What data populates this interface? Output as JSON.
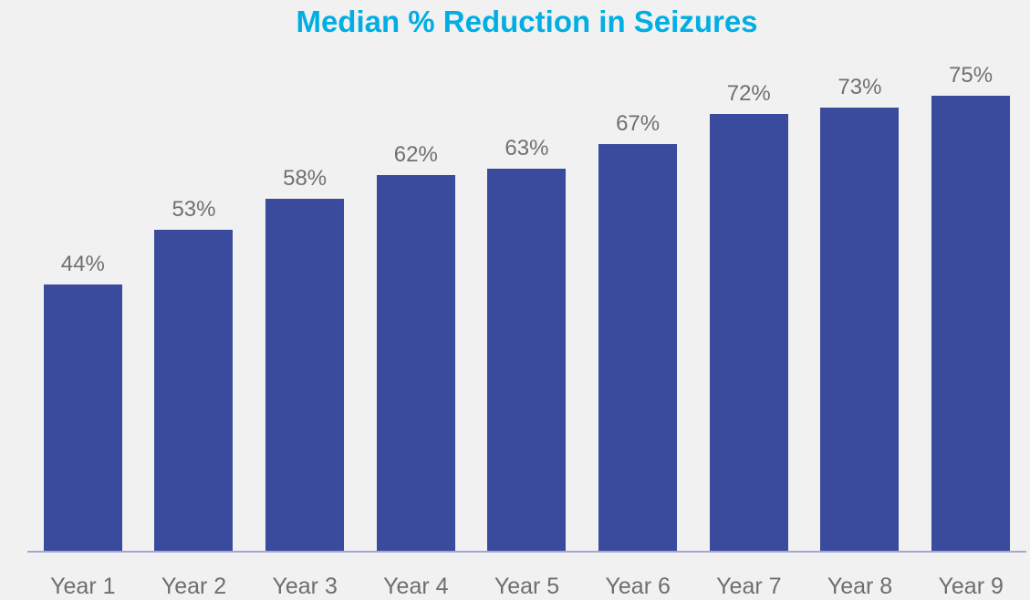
{
  "chart_data": {
    "type": "bar",
    "title": "Median % Reduction in Seizures",
    "categories": [
      "Year 1",
      "Year 2",
      "Year 3",
      "Year 4",
      "Year 5",
      "Year 6",
      "Year 7",
      "Year 8",
      "Year 9"
    ],
    "values": [
      44,
      53,
      58,
      62,
      63,
      67,
      72,
      73,
      75
    ],
    "data_labels": [
      "44%",
      "53%",
      "58%",
      "62%",
      "63%",
      "67%",
      "72%",
      "73%",
      "75%"
    ],
    "xlabel": "",
    "ylabel": "",
    "unit": "%",
    "ylim": [
      0,
      80
    ],
    "y_axis_visible": false,
    "grid": false,
    "legend": "none",
    "colors": {
      "background": "#F1F1F1",
      "bar": "#3A4A9D",
      "title": "#00AEE4",
      "data_label": "#707070",
      "category_label": "#6E6E6E",
      "axis_line": "#A3A6D4"
    }
  }
}
